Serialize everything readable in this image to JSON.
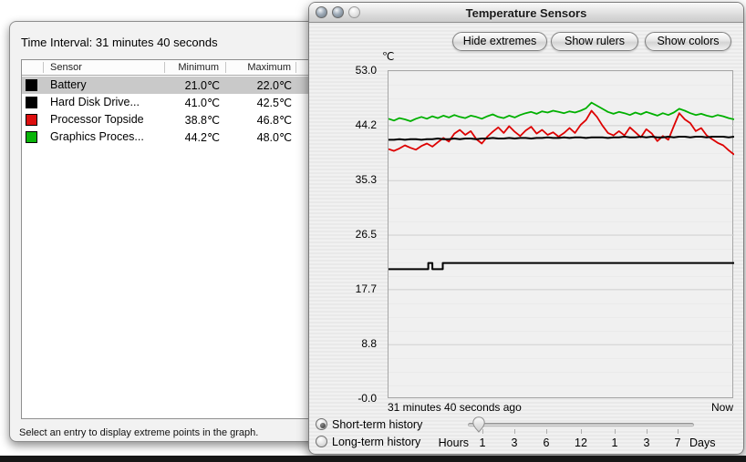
{
  "left_window": {
    "title": "Time Interval: 31 minutes 40 seconds",
    "footer": "Select an entry to display extreme points in the graph.",
    "table": {
      "columns": [
        "Sensor",
        "Minimum",
        "Maximum"
      ],
      "rows": [
        {
          "swatch_color": "#000000",
          "sensor": "Battery",
          "min": "21.0℃",
          "max": "22.0℃",
          "selected": true
        },
        {
          "swatch_color": "#000000",
          "sensor": "Hard Disk Drive...",
          "min": "41.0℃",
          "max": "42.5℃",
          "selected": false
        },
        {
          "swatch_color": "#dd0f0f",
          "sensor": "Processor Topside",
          "min": "38.8℃",
          "max": "46.8℃",
          "selected": false
        },
        {
          "swatch_color": "#09b409",
          "sensor": "Graphics Proces...",
          "min": "44.2℃",
          "max": "48.0℃",
          "selected": false
        }
      ]
    }
  },
  "right_window": {
    "title": "Temperature Sensors",
    "buttons": [
      {
        "label": "Hide extremes"
      },
      {
        "label": "Show rulers"
      },
      {
        "label": "Show colors"
      }
    ],
    "history": {
      "short": "Short-term history",
      "long": "Long-term history",
      "selected": "short"
    },
    "slider": {
      "hours_label": "Hours",
      "days_label": "Days",
      "tick_labels": [
        "1",
        "3",
        "6",
        "12",
        "1",
        "3",
        "7"
      ]
    }
  },
  "chart_data": {
    "type": "line",
    "title": "Temperature Sensors",
    "ylabel": "℃",
    "ylim": [
      0,
      53
    ],
    "yticks": [
      {
        "label": "53.0",
        "value": 53.0
      },
      {
        "label": "44.2",
        "value": 44.2
      },
      {
        "label": "35.3",
        "value": 35.3
      },
      {
        "label": "26.5",
        "value": 26.5
      },
      {
        "label": "17.7",
        "value": 17.7
      },
      {
        "label": "8.8",
        "value": 8.8
      },
      {
        "label": "-0.0",
        "value": 0.0
      }
    ],
    "x_left_label": "31 minutes 40 seconds ago",
    "x_right_label": "Now",
    "grid": true,
    "legend": "none",
    "series": [
      {
        "name": "Battery",
        "color": "#000000",
        "width": 2,
        "points": [
          [
            0,
            21
          ],
          [
            0.115,
            21
          ],
          [
            0.115,
            22
          ],
          [
            0.127,
            22
          ],
          [
            0.127,
            21
          ],
          [
            0.157,
            21
          ],
          [
            0.157,
            22
          ],
          [
            1,
            22
          ]
        ]
      },
      {
        "name": "Graphics Processor",
        "color": "#00b000",
        "width": 1.8,
        "values": [
          45.3,
          45.0,
          45.4,
          45.2,
          44.9,
          45.3,
          45.6,
          45.3,
          45.7,
          45.4,
          45.8,
          45.5,
          45.9,
          45.6,
          45.4,
          45.8,
          45.6,
          45.3,
          45.7,
          46.0,
          45.6,
          45.4,
          45.8,
          45.5,
          45.9,
          46.2,
          46.4,
          46.1,
          46.5,
          46.3,
          46.6,
          46.4,
          46.2,
          46.5,
          46.3,
          46.6,
          47.0,
          47.9,
          47.4,
          46.9,
          46.4,
          46.1,
          46.4,
          46.2,
          45.9,
          46.3,
          46.0,
          46.4,
          46.1,
          45.8,
          46.2,
          45.9,
          46.3,
          46.9,
          46.6,
          46.2,
          45.9,
          46.1,
          45.8,
          45.6,
          45.9,
          45.7,
          45.4,
          45.2
        ]
      },
      {
        "name": "Processor Topside",
        "color": "#dd0000",
        "width": 1.8,
        "values": [
          40.4,
          40.1,
          40.5,
          41.0,
          40.6,
          40.3,
          40.9,
          41.3,
          40.8,
          41.5,
          42.2,
          41.6,
          42.9,
          43.5,
          42.7,
          43.3,
          42.0,
          41.3,
          42.4,
          43.2,
          43.9,
          43.0,
          44.1,
          43.2,
          42.5,
          43.4,
          44.0,
          42.9,
          43.5,
          42.7,
          43.1,
          42.4,
          43.0,
          43.8,
          43.0,
          44.3,
          45.1,
          46.6,
          45.6,
          44.2,
          43.0,
          42.6,
          43.3,
          42.6,
          43.9,
          43.1,
          42.3,
          43.6,
          42.9,
          41.7,
          42.5,
          41.9,
          44.1,
          46.2,
          45.2,
          44.6,
          43.3,
          43.8,
          42.6,
          42.0,
          41.4,
          41.0,
          40.2,
          39.5
        ]
      },
      {
        "name": "Hard Disk Drive",
        "color": "#000000",
        "width": 2,
        "values": [
          41.9,
          41.9,
          42.0,
          41.9,
          42.0,
          42.0,
          41.9,
          42.0,
          42.0,
          42.1,
          42.0,
          42.0,
          42.1,
          42.0,
          42.1,
          42.1,
          42.0,
          42.1,
          42.1,
          42.2,
          42.1,
          42.1,
          42.2,
          42.1,
          42.2,
          42.2,
          42.1,
          42.2,
          42.2,
          42.3,
          42.2,
          42.2,
          42.3,
          42.2,
          42.3,
          42.3,
          42.2,
          42.3,
          42.3,
          42.3,
          42.2,
          42.3,
          42.3,
          42.4,
          42.3,
          42.3,
          42.4,
          42.3,
          42.4,
          42.3,
          42.3,
          42.4,
          42.3,
          42.4,
          42.4,
          42.3,
          42.4,
          42.4,
          42.3,
          42.4,
          42.4,
          42.4,
          42.3,
          42.4
        ]
      }
    ]
  }
}
